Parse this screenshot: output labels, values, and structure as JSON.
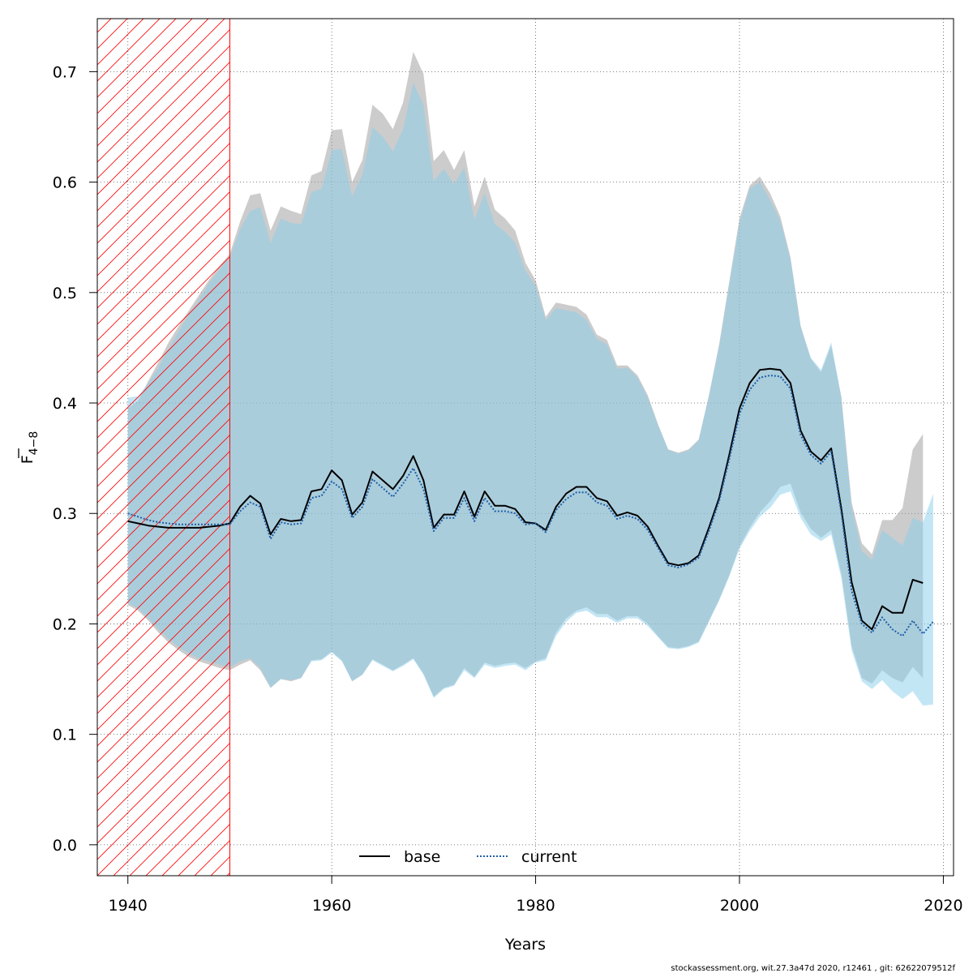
{
  "chart_data": {
    "type": "area",
    "xlabel": "Years",
    "ylabel": "F",
    "ylabel_sub": "4−8",
    "xlim": [
      1937,
      2021
    ],
    "ylim": [
      -0.028,
      0.748
    ],
    "x_ticks": [
      1940,
      1960,
      1980,
      2000,
      2020
    ],
    "y_ticks": [
      0.0,
      0.1,
      0.2,
      0.3,
      0.4,
      0.5,
      0.6,
      0.7
    ],
    "y_tick_labels": [
      "0.0",
      "0.1",
      "0.2",
      "0.3",
      "0.4",
      "0.5",
      "0.6",
      "0.7"
    ],
    "grid": true,
    "shaded_region": {
      "x_start": 1937,
      "x_end": 1950,
      "color": "#ff0000",
      "pattern": "hatch"
    },
    "legend_position": "bottom-center",
    "x": [
      1940,
      1941,
      1942,
      1943,
      1944,
      1945,
      1946,
      1947,
      1948,
      1949,
      1950,
      1951,
      1952,
      1953,
      1954,
      1955,
      1956,
      1957,
      1958,
      1959,
      1960,
      1961,
      1962,
      1963,
      1964,
      1965,
      1966,
      1967,
      1968,
      1969,
      1970,
      1971,
      1972,
      1973,
      1974,
      1975,
      1976,
      1977,
      1978,
      1979,
      1980,
      1981,
      1982,
      1983,
      1984,
      1985,
      1986,
      1987,
      1988,
      1989,
      1990,
      1991,
      1992,
      1993,
      1994,
      1995,
      1996,
      1997,
      1998,
      1999,
      2000,
      2001,
      2002,
      2003,
      2004,
      2005,
      2006,
      2007,
      2008,
      2009,
      2010,
      2011,
      2012,
      2013,
      2014,
      2015,
      2016,
      2017,
      2018,
      2019
    ],
    "series": [
      {
        "name": "base",
        "line_style": "solid",
        "color": "#000000",
        "band_color": "#999999",
        "values": [
          0.293,
          0.291,
          0.289,
          0.288,
          0.287,
          0.287,
          0.287,
          0.287,
          0.288,
          0.289,
          0.291,
          0.306,
          0.316,
          0.309,
          0.281,
          0.295,
          0.293,
          0.294,
          0.32,
          0.322,
          0.339,
          0.33,
          0.299,
          0.31,
          0.338,
          0.33,
          0.322,
          0.334,
          0.352,
          0.33,
          0.287,
          0.299,
          0.299,
          0.32,
          0.297,
          0.32,
          0.307,
          0.307,
          0.304,
          0.292,
          0.291,
          0.285,
          0.306,
          0.318,
          0.324,
          0.324,
          0.314,
          0.311,
          0.298,
          0.301,
          0.298,
          0.288,
          0.271,
          0.255,
          0.253,
          0.255,
          0.262,
          0.287,
          0.314,
          0.353,
          0.395,
          0.418,
          0.43,
          0.431,
          0.43,
          0.418,
          0.375,
          0.356,
          0.348,
          0.359,
          0.304,
          0.238,
          0.203,
          0.195,
          0.216,
          0.21,
          0.21,
          0.24,
          0.237,
          null
        ],
        "lower": [
          0.217,
          0.212,
          0.203,
          0.192,
          0.183,
          0.176,
          0.17,
          0.166,
          0.163,
          0.16,
          0.158,
          0.163,
          0.167,
          0.158,
          0.142,
          0.15,
          0.148,
          0.151,
          0.167,
          0.168,
          0.175,
          0.167,
          0.148,
          0.154,
          0.168,
          0.163,
          0.158,
          0.163,
          0.169,
          0.155,
          0.134,
          0.142,
          0.145,
          0.16,
          0.152,
          0.165,
          0.162,
          0.164,
          0.165,
          0.16,
          0.166,
          0.169,
          0.192,
          0.205,
          0.212,
          0.215,
          0.209,
          0.209,
          0.203,
          0.207,
          0.207,
          0.2,
          0.189,
          0.179,
          0.178,
          0.18,
          0.184,
          0.203,
          0.222,
          0.244,
          0.27,
          0.287,
          0.301,
          0.311,
          0.324,
          0.327,
          0.301,
          0.286,
          0.278,
          0.285,
          0.245,
          0.18,
          0.151,
          0.146,
          0.158,
          0.151,
          0.147,
          0.161,
          0.151,
          null
        ],
        "upper": [
          0.395,
          0.402,
          0.42,
          0.437,
          0.455,
          0.47,
          0.484,
          0.498,
          0.512,
          0.524,
          0.535,
          0.564,
          0.588,
          0.59,
          0.556,
          0.578,
          0.574,
          0.571,
          0.606,
          0.61,
          0.647,
          0.648,
          0.6,
          0.62,
          0.67,
          0.662,
          0.648,
          0.672,
          0.718,
          0.698,
          0.619,
          0.629,
          0.611,
          0.629,
          0.578,
          0.605,
          0.575,
          0.567,
          0.556,
          0.527,
          0.511,
          0.478,
          0.491,
          0.489,
          0.487,
          0.48,
          0.462,
          0.457,
          0.434,
          0.434,
          0.425,
          0.407,
          0.381,
          0.358,
          0.355,
          0.358,
          0.367,
          0.407,
          0.453,
          0.51,
          0.567,
          0.597,
          0.605,
          0.59,
          0.569,
          0.532,
          0.47,
          0.44,
          0.428,
          0.452,
          0.405,
          0.31,
          0.273,
          0.263,
          0.294,
          0.294,
          0.305,
          0.358,
          0.372,
          null
        ]
      },
      {
        "name": "current",
        "line_style": "dotted",
        "color": "#1f5fa8",
        "band_color": "#87ceeb",
        "values": [
          0.3,
          0.297,
          0.294,
          0.292,
          0.291,
          0.29,
          0.29,
          0.29,
          0.29,
          0.29,
          0.29,
          0.302,
          0.31,
          0.306,
          0.277,
          0.292,
          0.29,
          0.291,
          0.314,
          0.316,
          0.329,
          0.322,
          0.296,
          0.306,
          0.331,
          0.323,
          0.315,
          0.327,
          0.341,
          0.322,
          0.284,
          0.296,
          0.296,
          0.314,
          0.293,
          0.314,
          0.302,
          0.302,
          0.3,
          0.29,
          0.291,
          0.283,
          0.303,
          0.313,
          0.319,
          0.319,
          0.31,
          0.307,
          0.295,
          0.298,
          0.295,
          0.285,
          0.269,
          0.253,
          0.251,
          0.254,
          0.26,
          0.284,
          0.311,
          0.349,
          0.39,
          0.412,
          0.423,
          0.425,
          0.424,
          0.413,
          0.371,
          0.353,
          0.345,
          0.356,
          0.3,
          0.23,
          0.2,
          0.192,
          0.206,
          0.195,
          0.189,
          0.203,
          0.191,
          0.202
        ],
        "lower": [
          0.219,
          0.214,
          0.205,
          0.195,
          0.186,
          0.179,
          0.173,
          0.169,
          0.166,
          0.163,
          0.161,
          0.166,
          0.169,
          0.16,
          0.142,
          0.15,
          0.149,
          0.151,
          0.166,
          0.167,
          0.174,
          0.166,
          0.148,
          0.154,
          0.167,
          0.162,
          0.157,
          0.162,
          0.168,
          0.154,
          0.133,
          0.141,
          0.144,
          0.158,
          0.151,
          0.163,
          0.16,
          0.162,
          0.163,
          0.158,
          0.165,
          0.167,
          0.189,
          0.202,
          0.21,
          0.212,
          0.206,
          0.206,
          0.201,
          0.205,
          0.205,
          0.198,
          0.188,
          0.178,
          0.177,
          0.179,
          0.183,
          0.202,
          0.221,
          0.243,
          0.268,
          0.284,
          0.297,
          0.305,
          0.317,
          0.32,
          0.296,
          0.281,
          0.275,
          0.281,
          0.241,
          0.176,
          0.148,
          0.141,
          0.149,
          0.139,
          0.132,
          0.139,
          0.126,
          0.127
        ],
        "upper": [
          0.405,
          0.406,
          0.418,
          0.432,
          0.449,
          0.465,
          0.48,
          0.494,
          0.509,
          0.521,
          0.532,
          0.557,
          0.574,
          0.577,
          0.545,
          0.567,
          0.563,
          0.562,
          0.591,
          0.594,
          0.629,
          0.63,
          0.587,
          0.607,
          0.65,
          0.641,
          0.628,
          0.648,
          0.69,
          0.67,
          0.601,
          0.612,
          0.598,
          0.613,
          0.566,
          0.59,
          0.562,
          0.555,
          0.545,
          0.52,
          0.506,
          0.475,
          0.486,
          0.484,
          0.482,
          0.475,
          0.458,
          0.453,
          0.431,
          0.432,
          0.423,
          0.405,
          0.38,
          0.358,
          0.354,
          0.357,
          0.366,
          0.406,
          0.451,
          0.507,
          0.563,
          0.594,
          0.6,
          0.584,
          0.565,
          0.53,
          0.469,
          0.441,
          0.43,
          0.455,
          0.405,
          0.306,
          0.266,
          0.258,
          0.285,
          0.278,
          0.271,
          0.296,
          0.292,
          0.318
        ]
      }
    ]
  },
  "footer_text": "stockassessment.org, wit.27.3a47d   2020, r12461 , git: 62622079512f"
}
